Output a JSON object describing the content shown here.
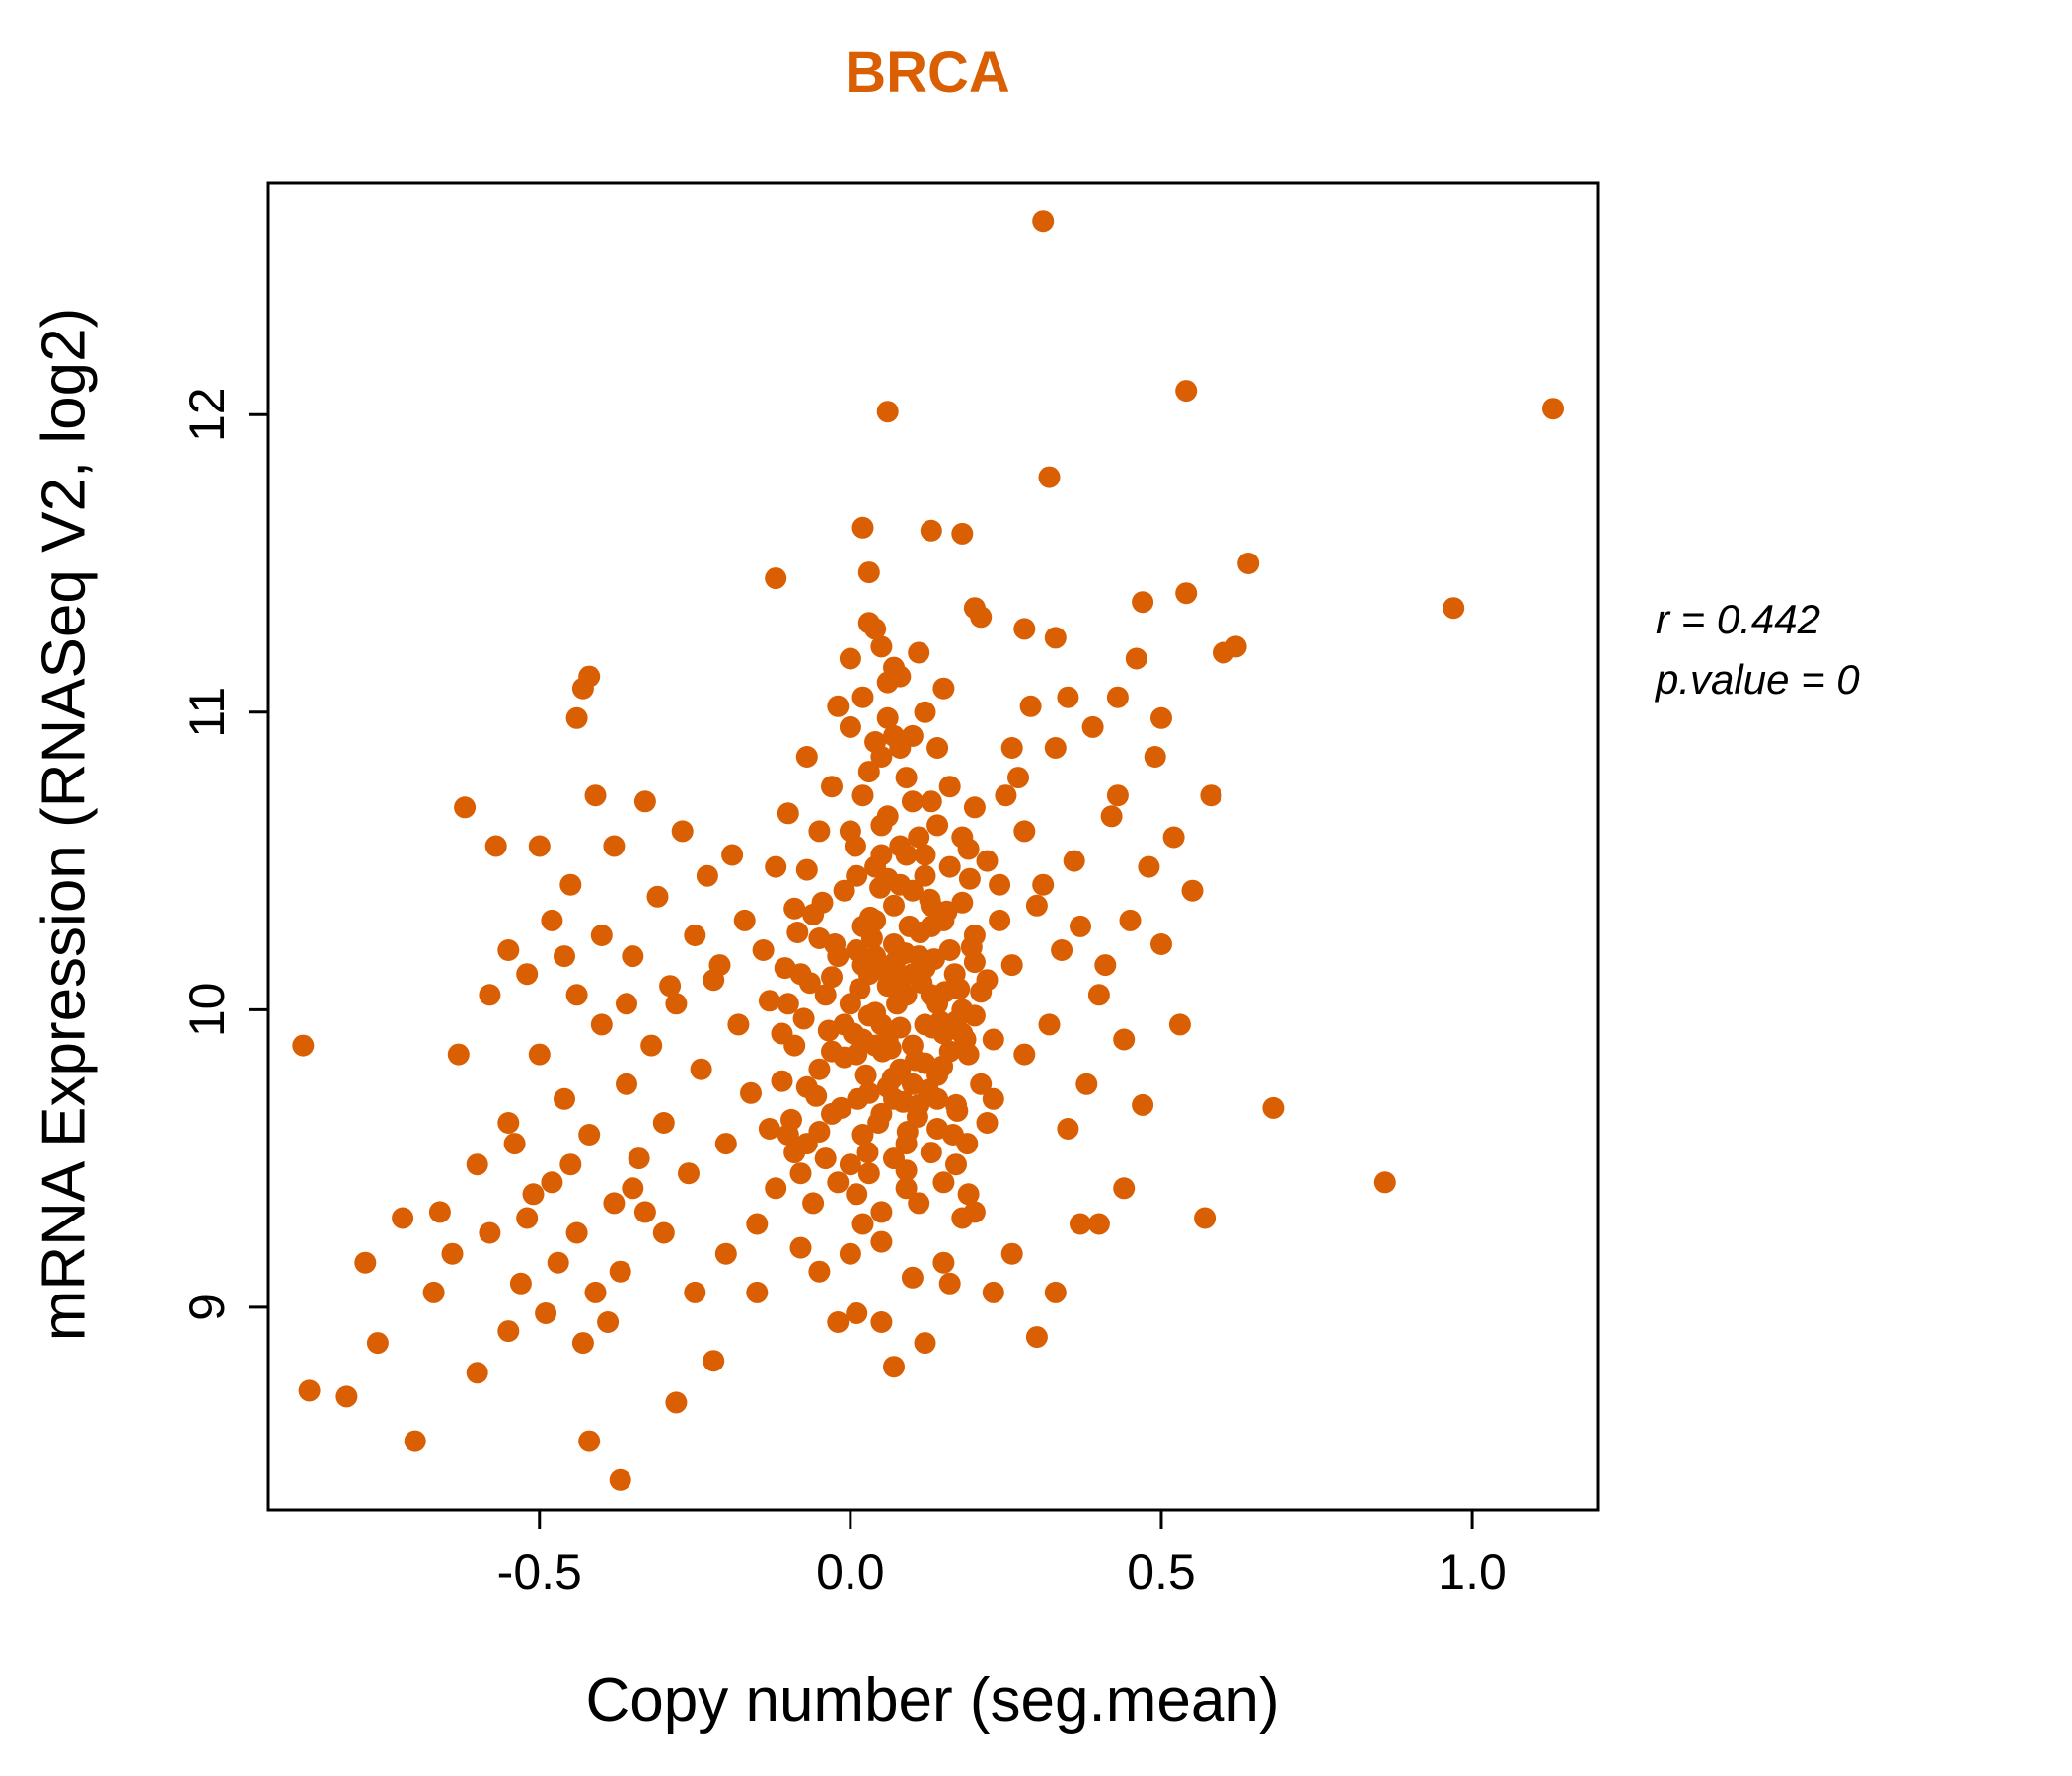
{
  "colors": {
    "point": "#D95F02",
    "title": "#D95F02",
    "axis": "#000000"
  },
  "annotation": {
    "r_label": "r = 0.442",
    "p_label": "p.value = 0"
  },
  "chart_data": {
    "type": "scatter",
    "title": "BRCA",
    "xlabel": "Copy number (seg.mean)",
    "ylabel": "mRNA Expression (RNASeq V2, log2)",
    "xlim": [
      -0.936,
      1.203
    ],
    "ylim": [
      8.32,
      12.78
    ],
    "x_ticks": {
      "values": [
        -0.5,
        0.0,
        0.5,
        1.0
      ],
      "labels": [
        "-0.5",
        "0.0",
        "0.5",
        "1.0"
      ]
    },
    "y_ticks": {
      "values": [
        9,
        10,
        11,
        12
      ],
      "labels": [
        "9",
        "10",
        "11",
        "12"
      ]
    },
    "grid": false,
    "legend": "none",
    "point_radius": 11,
    "points": [
      [
        0.31,
        12.65
      ],
      [
        0.54,
        12.08
      ],
      [
        1.13,
        12.02
      ],
      [
        0.06,
        12.01
      ],
      [
        0.32,
        11.79
      ],
      [
        0.97,
        11.35
      ],
      [
        0.86,
        9.42
      ],
      [
        -0.88,
        9.88
      ],
      [
        0.02,
        11.62
      ],
      [
        0.13,
        11.61
      ],
      [
        0.18,
        11.6
      ],
      [
        0.03,
        11.47
      ],
      [
        -0.12,
        11.45
      ],
      [
        0.64,
        11.5
      ],
      [
        0.47,
        11.37
      ],
      [
        0.54,
        11.4
      ],
      [
        0.6,
        11.2
      ],
      [
        0.33,
        11.25
      ],
      [
        0.43,
        11.05
      ],
      [
        -0.42,
        11.12
      ],
      [
        -0.43,
        11.08
      ],
      [
        -0.44,
        10.98
      ],
      [
        0.2,
        11.35
      ],
      [
        0.28,
        11.28
      ],
      [
        -0.87,
        8.72
      ],
      [
        -0.81,
        8.7
      ],
      [
        -0.76,
        8.88
      ],
      [
        -0.7,
        8.55
      ],
      [
        -0.66,
        9.32
      ],
      [
        -0.64,
        9.18
      ],
      [
        -0.62,
        10.68
      ],
      [
        -0.6,
        8.78
      ],
      [
        -0.58,
        9.25
      ],
      [
        -0.57,
        10.55
      ],
      [
        -0.55,
        9.62
      ],
      [
        -0.55,
        8.92
      ],
      [
        -0.37,
        8.42
      ],
      [
        -0.42,
        8.55
      ],
      [
        -0.15,
        9.05
      ],
      [
        0.05,
        8.95
      ],
      [
        0.12,
        8.88
      ],
      [
        0.23,
        9.05
      ],
      [
        0.26,
        9.18
      ],
      [
        0.37,
        9.28
      ],
      [
        -0.05,
        9.12
      ],
      [
        0.01,
        8.98
      ],
      [
        -0.22,
        8.82
      ],
      [
        -0.28,
        8.68
      ],
      [
        0.0,
        10.02
      ],
      [
        0.01,
        9.85
      ],
      [
        0.02,
        10.15
      ],
      [
        0.03,
        9.72
      ],
      [
        0.04,
        10.3
      ],
      [
        0.05,
        9.95
      ],
      [
        0.06,
        10.08
      ],
      [
        0.02,
        9.58
      ],
      [
        0.07,
        10.22
      ],
      [
        0.08,
        9.8
      ],
      [
        0.01,
        10.45
      ],
      [
        0.03,
        10.12
      ],
      [
        0.05,
        9.65
      ],
      [
        0.06,
        9.9
      ],
      [
        0.09,
        10.05
      ],
      [
        0.1,
        9.75
      ],
      [
        0.11,
        10.18
      ],
      [
        0.12,
        9.95
      ],
      [
        0.13,
        10.35
      ],
      [
        0.14,
        9.6
      ],
      [
        0.0,
        9.48
      ],
      [
        0.02,
        10.28
      ],
      [
        0.04,
        9.88
      ],
      [
        0.05,
        10.52
      ],
      [
        0.07,
        9.7
      ],
      [
        0.08,
        10.1
      ],
      [
        0.09,
        9.55
      ],
      [
        0.1,
        10.4
      ],
      [
        0.12,
        9.82
      ],
      [
        0.13,
        10.05
      ],
      [
        0.15,
        9.92
      ],
      [
        0.16,
        10.2
      ],
      [
        0.17,
        9.68
      ],
      [
        0.18,
        10.0
      ],
      [
        0.19,
        9.85
      ],
      [
        0.2,
        10.25
      ],
      [
        0.21,
        9.75
      ],
      [
        0.22,
        10.1
      ],
      [
        0.23,
        9.9
      ],
      [
        0.24,
        10.3
      ],
      [
        -0.01,
        9.95
      ],
      [
        -0.02,
        10.18
      ],
      [
        -0.03,
        9.65
      ],
      [
        -0.04,
        10.05
      ],
      [
        -0.05,
        9.8
      ],
      [
        -0.06,
        10.32
      ],
      [
        -0.07,
        9.55
      ],
      [
        -0.08,
        10.12
      ],
      [
        -0.09,
        9.88
      ],
      [
        -0.1,
        10.02
      ],
      [
        0.0,
        10.6
      ],
      [
        0.02,
        10.72
      ],
      [
        0.04,
        10.48
      ],
      [
        0.06,
        10.65
      ],
      [
        0.08,
        10.55
      ],
      [
        0.1,
        10.7
      ],
      [
        0.12,
        10.45
      ],
      [
        0.14,
        10.62
      ],
      [
        0.03,
        10.8
      ],
      [
        0.05,
        10.85
      ],
      [
        0.01,
        9.38
      ],
      [
        0.03,
        9.45
      ],
      [
        0.05,
        9.32
      ],
      [
        0.07,
        9.5
      ],
      [
        0.09,
        9.4
      ],
      [
        0.11,
        9.35
      ],
      [
        0.13,
        9.52
      ],
      [
        0.15,
        9.42
      ],
      [
        0.17,
        9.48
      ],
      [
        0.19,
        9.38
      ],
      [
        -0.02,
        9.42
      ],
      [
        -0.04,
        9.5
      ],
      [
        -0.06,
        9.35
      ],
      [
        -0.08,
        9.45
      ],
      [
        -0.1,
        9.58
      ],
      [
        -0.12,
        9.4
      ],
      [
        0.02,
        9.28
      ],
      [
        0.0,
        10.95
      ],
      [
        0.02,
        11.05
      ],
      [
        0.04,
        10.9
      ],
      [
        0.06,
        11.1
      ],
      [
        0.08,
        10.88
      ],
      [
        0.05,
        11.22
      ],
      [
        0.03,
        11.3
      ],
      [
        0.1,
        10.92
      ],
      [
        0.12,
        11.0
      ],
      [
        0.07,
        11.15
      ],
      [
        -0.03,
        10.75
      ],
      [
        -0.05,
        10.6
      ],
      [
        -0.07,
        10.85
      ],
      [
        0.16,
        10.75
      ],
      [
        0.18,
        10.58
      ],
      [
        0.2,
        10.68
      ],
      [
        0.22,
        10.5
      ],
      [
        0.15,
        11.08
      ],
      [
        0.25,
        10.72
      ],
      [
        0.28,
        10.6
      ],
      [
        0.26,
        10.15
      ],
      [
        0.28,
        9.85
      ],
      [
        0.3,
        10.35
      ],
      [
        0.32,
        9.95
      ],
      [
        0.34,
        10.2
      ],
      [
        0.36,
        10.5
      ],
      [
        0.38,
        9.75
      ],
      [
        0.4,
        10.05
      ],
      [
        0.42,
        10.65
      ],
      [
        0.44,
        9.9
      ],
      [
        0.27,
        10.78
      ],
      [
        0.29,
        11.02
      ],
      [
        0.31,
        10.42
      ],
      [
        0.33,
        10.88
      ],
      [
        0.35,
        9.6
      ],
      [
        0.37,
        10.28
      ],
      [
        0.39,
        10.95
      ],
      [
        0.41,
        10.15
      ],
      [
        0.43,
        10.72
      ],
      [
        0.45,
        10.3
      ],
      [
        0.47,
        9.68
      ],
      [
        0.48,
        10.48
      ],
      [
        0.5,
        10.22
      ],
      [
        0.52,
        10.58
      ],
      [
        0.46,
        11.18
      ],
      [
        0.49,
        10.85
      ],
      [
        0.53,
        9.95
      ],
      [
        0.55,
        10.4
      ],
      [
        0.58,
        10.72
      ],
      [
        0.62,
        11.22
      ],
      [
        -0.16,
        9.72
      ],
      [
        -0.18,
        9.95
      ],
      [
        -0.2,
        9.55
      ],
      [
        -0.22,
        10.1
      ],
      [
        -0.24,
        9.8
      ],
      [
        -0.26,
        9.45
      ],
      [
        -0.28,
        10.02
      ],
      [
        -0.3,
        9.62
      ],
      [
        -0.32,
        9.88
      ],
      [
        -0.34,
        9.5
      ],
      [
        -0.36,
        9.75
      ],
      [
        -0.38,
        9.35
      ],
      [
        -0.4,
        9.95
      ],
      [
        -0.42,
        9.58
      ],
      [
        -0.44,
        9.25
      ],
      [
        -0.46,
        9.7
      ],
      [
        -0.48,
        9.42
      ],
      [
        -0.5,
        9.85
      ],
      [
        -0.52,
        9.3
      ],
      [
        -0.54,
        9.55
      ],
      [
        -0.17,
        10.3
      ],
      [
        -0.19,
        10.52
      ],
      [
        -0.21,
        10.15
      ],
      [
        -0.23,
        10.45
      ],
      [
        -0.25,
        10.25
      ],
      [
        -0.27,
        10.6
      ],
      [
        -0.29,
        10.08
      ],
      [
        -0.31,
        10.38
      ],
      [
        -0.33,
        10.7
      ],
      [
        -0.35,
        10.18
      ],
      [
        -0.37,
        9.12
      ],
      [
        -0.39,
        8.95
      ],
      [
        -0.41,
        9.05
      ],
      [
        -0.43,
        8.88
      ],
      [
        -0.45,
        9.48
      ],
      [
        -0.47,
        9.15
      ],
      [
        -0.49,
        8.98
      ],
      [
        -0.51,
        9.38
      ],
      [
        -0.53,
        9.08
      ],
      [
        -0.45,
        10.42
      ],
      [
        -0.15,
        9.28
      ],
      [
        -0.2,
        9.18
      ],
      [
        -0.25,
        9.05
      ],
      [
        -0.3,
        9.25
      ],
      [
        -0.35,
        9.4
      ],
      [
        -0.4,
        10.25
      ],
      [
        -0.44,
        10.05
      ],
      [
        -0.48,
        10.3
      ],
      [
        -0.52,
        10.12
      ],
      [
        -0.38,
        10.55
      ],
      [
        -0.6,
        9.48
      ],
      [
        -0.63,
        9.85
      ],
      [
        -0.67,
        9.05
      ],
      [
        -0.72,
        9.3
      ],
      [
        -0.78,
        9.15
      ],
      [
        -0.55,
        10.2
      ],
      [
        -0.58,
        10.05
      ],
      [
        0.005,
        9.92
      ],
      [
        0.015,
        10.07
      ],
      [
        0.025,
        9.78
      ],
      [
        0.035,
        10.24
      ],
      [
        0.045,
        9.62
      ],
      [
        0.055,
        10.13
      ],
      [
        0.065,
        9.87
      ],
      [
        0.075,
        10.02
      ],
      [
        0.085,
        9.69
      ],
      [
        0.095,
        10.28
      ],
      [
        0.105,
        9.83
      ],
      [
        0.115,
        10.09
      ],
      [
        0.125,
        9.73
      ],
      [
        0.135,
        10.17
      ],
      [
        0.145,
        9.96
      ],
      [
        0.155,
        10.33
      ],
      [
        0.165,
        9.58
      ],
      [
        0.175,
        10.07
      ],
      [
        0.185,
        9.9
      ],
      [
        0.195,
        10.21
      ],
      [
        -0.015,
        9.67
      ],
      [
        -0.025,
        10.22
      ],
      [
        -0.035,
        9.93
      ],
      [
        -0.045,
        10.36
      ],
      [
        -0.055,
        9.71
      ],
      [
        -0.065,
        10.09
      ],
      [
        -0.075,
        9.97
      ],
      [
        -0.085,
        10.26
      ],
      [
        -0.095,
        9.63
      ],
      [
        -0.105,
        10.14
      ],
      [
        0.008,
        10.55
      ],
      [
        0.028,
        9.52
      ],
      [
        0.048,
        10.41
      ],
      [
        0.068,
        9.77
      ],
      [
        0.088,
        10.19
      ],
      [
        0.108,
        9.64
      ],
      [
        0.128,
        10.37
      ],
      [
        0.148,
        9.81
      ],
      [
        0.168,
        10.12
      ],
      [
        0.188,
        9.55
      ],
      [
        0.012,
        9.7
      ],
      [
        0.032,
        10.31
      ],
      [
        0.052,
        9.86
      ],
      [
        0.072,
        10.16
      ],
      [
        0.092,
        9.59
      ],
      [
        0.112,
        10.26
      ],
      [
        0.132,
        9.94
      ],
      [
        0.152,
        10.06
      ],
      [
        0.172,
        9.66
      ],
      [
        0.192,
        10.44
      ],
      [
        -0.11,
        9.76
      ],
      [
        -0.13,
        10.03
      ],
      [
        -0.09,
        9.52
      ],
      [
        -0.07,
        10.47
      ],
      [
        -0.05,
        9.59
      ],
      [
        -0.03,
        10.11
      ],
      [
        -0.01,
        9.84
      ],
      [
        0.04,
        9.99
      ],
      [
        0.09,
        10.52
      ],
      [
        0.14,
        9.7
      ],
      [
        0.0,
        11.18
      ],
      [
        0.04,
        11.28
      ],
      [
        0.08,
        11.12
      ],
      [
        -0.02,
        11.02
      ],
      [
        0.06,
        10.98
      ],
      [
        0.11,
        11.2
      ],
      [
        0.21,
        11.32
      ],
      [
        0.35,
        11.05
      ],
      [
        0.5,
        10.98
      ],
      [
        0.57,
        9.3
      ],
      [
        0.68,
        9.67
      ],
      [
        0.44,
        9.4
      ],
      [
        0.4,
        9.28
      ],
      [
        0.0,
        9.18
      ],
      [
        0.05,
        9.22
      ],
      [
        0.1,
        9.1
      ],
      [
        -0.02,
        8.95
      ],
      [
        0.15,
        9.15
      ],
      [
        0.2,
        9.32
      ],
      [
        -0.08,
        9.2
      ],
      [
        0.33,
        9.05
      ],
      [
        0.3,
        8.9
      ],
      [
        0.07,
        8.8
      ],
      [
        -0.33,
        9.32
      ],
      [
        -0.36,
        10.02
      ],
      [
        -0.41,
        10.72
      ],
      [
        -0.46,
        10.18
      ],
      [
        -0.5,
        10.55
      ],
      [
        0.24,
        10.42
      ],
      [
        0.26,
        10.88
      ],
      [
        0.22,
        9.62
      ],
      [
        0.18,
        9.3
      ],
      [
        0.16,
        9.08
      ],
      [
        0.14,
        10.88
      ],
      [
        0.09,
        10.78
      ],
      [
        0.07,
        10.35
      ],
      [
        0.11,
        10.58
      ],
      [
        0.13,
        10.28
      ],
      [
        0.01,
        10.2
      ],
      [
        0.03,
        9.98
      ],
      [
        0.06,
        10.44
      ],
      [
        0.08,
        9.94
      ],
      [
        0.1,
        10.12
      ],
      [
        0.12,
        10.52
      ],
      [
        0.14,
        10.02
      ],
      [
        0.16,
        9.86
      ],
      [
        0.18,
        10.36
      ],
      [
        0.2,
        9.98
      ],
      [
        -0.01,
        10.4
      ],
      [
        -0.03,
        9.86
      ],
      [
        -0.05,
        10.24
      ],
      [
        -0.07,
        9.74
      ],
      [
        -0.09,
        10.34
      ],
      [
        -0.11,
        9.92
      ],
      [
        -0.13,
        9.6
      ],
      [
        -0.14,
        10.2
      ],
      [
        -0.12,
        10.48
      ],
      [
        -0.1,
        10.66
      ],
      [
        0.02,
        9.9
      ],
      [
        0.04,
        10.18
      ],
      [
        0.06,
        9.74
      ],
      [
        0.08,
        10.42
      ],
      [
        0.1,
        9.88
      ],
      [
        0.12,
        10.14
      ],
      [
        0.14,
        9.78
      ],
      [
        0.16,
        10.48
      ],
      [
        0.18,
        9.92
      ],
      [
        0.2,
        10.16
      ],
      [
        0.05,
        10.62
      ],
      [
        0.07,
        10.92
      ],
      [
        0.09,
        9.46
      ],
      [
        0.11,
        9.68
      ],
      [
        0.13,
        10.7
      ],
      [
        0.15,
        10.3
      ],
      [
        0.17,
        9.96
      ],
      [
        0.19,
        10.54
      ],
      [
        0.21,
        10.06
      ],
      [
        0.23,
        9.7
      ]
    ]
  }
}
